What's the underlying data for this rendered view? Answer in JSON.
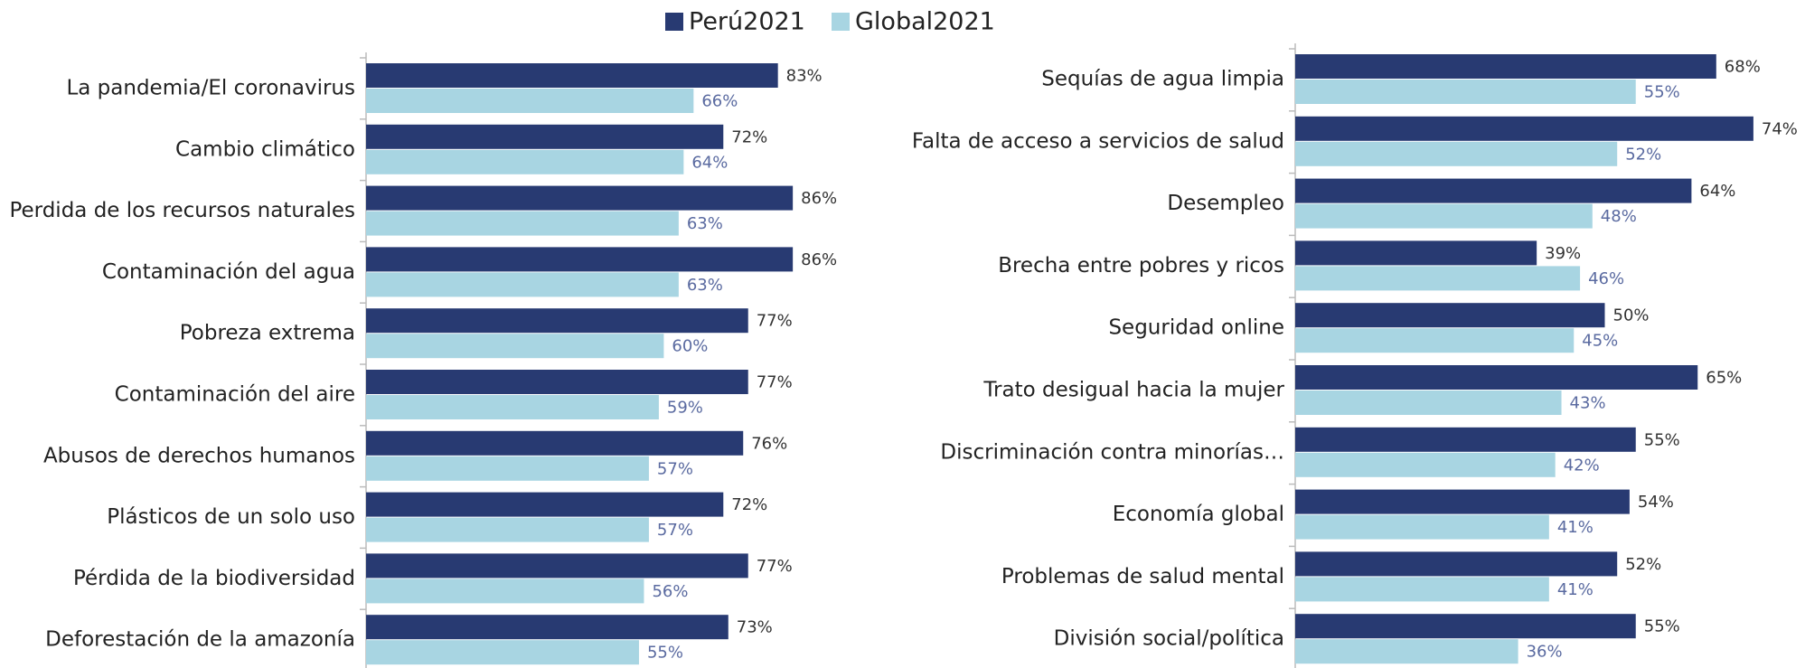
{
  "chart_data": [
    {
      "type": "bar",
      "orientation": "horizontal",
      "categories": [
        "La pandemia/El coronavirus",
        "Cambio climático",
        "Perdida de los recursos naturales",
        "Contaminación del agua",
        "Pobreza extrema",
        "Contaminación del aire",
        "Abusos de derechos humanos",
        "Plásticos de un solo uso",
        "Pérdida de la biodiversidad",
        "Deforestación de la amazonía"
      ],
      "series": [
        {
          "name": "Perú2021",
          "color": "#283a72",
          "values": [
            83,
            72,
            86,
            86,
            77,
            77,
            76,
            72,
            77,
            73
          ],
          "value_labels": [
            "83%",
            "72%",
            "86%",
            "86%",
            "77%",
            "77%",
            "76%",
            "72%",
            "77%",
            "73%"
          ]
        },
        {
          "name": "Global2021",
          "color": "#a8d5e2",
          "values": [
            66,
            64,
            63,
            63,
            60,
            59,
            57,
            57,
            56,
            55
          ],
          "value_labels": [
            "66%",
            "64%",
            "63%",
            "63%",
            "60%",
            "59%",
            "57%",
            "57%",
            "56%",
            "55%"
          ]
        }
      ],
      "xlim": [
        0,
        100
      ]
    },
    {
      "type": "bar",
      "orientation": "horizontal",
      "categories": [
        "Sequías de agua limpia",
        "Falta de acceso a servicios de salud",
        "Desempleo",
        "Brecha entre pobres y ricos",
        "Seguridad online",
        "Trato desigual hacia la mujer",
        "Discriminación contra minorías…",
        "Economía global",
        "Problemas de salud mental",
        "División social/política"
      ],
      "series": [
        {
          "name": "Perú2021",
          "color": "#283a72",
          "values": [
            68,
            74,
            64,
            39,
            50,
            65,
            55,
            54,
            52,
            55
          ],
          "value_labels": [
            "68%",
            "74%",
            "64%",
            "39%",
            "50%",
            "65%",
            "55%",
            "54%",
            "52%",
            "55%"
          ]
        },
        {
          "name": "Global2021",
          "color": "#a8d5e2",
          "values": [
            55,
            52,
            48,
            46,
            45,
            43,
            42,
            41,
            41,
            36
          ],
          "value_labels": [
            "55%",
            "52%",
            "48%",
            "46%",
            "45%",
            "43%",
            "42%",
            "41%",
            "41%",
            "36%"
          ]
        }
      ],
      "xlim": [
        0,
        100
      ]
    }
  ]
}
